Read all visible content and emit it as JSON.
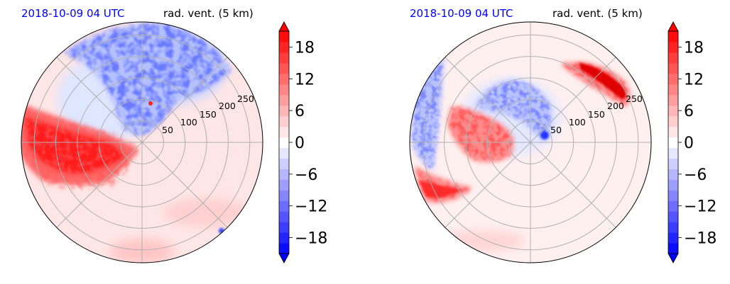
{
  "chart_data": [
    {
      "type": "heatmap",
      "projection": "polar",
      "time_label": "2018-10-09 04 UTC",
      "variable_label": "rad. vent. (5 km)",
      "radial_ticks": [
        "50",
        "100",
        "150",
        "200",
        "250"
      ],
      "radial_tick_values": [
        50,
        100,
        150,
        200,
        250
      ],
      "rmax": 280,
      "grid": true,
      "colorbar": {
        "ticks": [
          "18",
          "12",
          "6",
          "0",
          "−6",
          "−12",
          "−18"
        ],
        "tick_values": [
          18,
          12,
          6,
          0,
          -6,
          -12,
          -18
        ],
        "range": [
          -21,
          21
        ],
        "colors": {
          "negative": "#0000ff",
          "zero": "#ffffff",
          "positive": "#ff0000"
        },
        "extend": "both"
      },
      "features": [
        {
          "sign": "positive",
          "intensity": 0.85,
          "description": "broad band",
          "azimuth_range_deg": [
            168,
            235
          ],
          "radius_range_km": [
            60,
            280
          ]
        },
        {
          "sign": "negative",
          "intensity": 0.55,
          "description": "patchy region",
          "azimuth_range_deg": [
            55,
            125
          ],
          "radius_range_km": [
            20,
            280
          ]
        },
        {
          "sign": "positive",
          "intensity": 0.6,
          "description": "small core",
          "azimuth_range_deg": [
            92,
            98
          ],
          "radius_range_km": [
            80,
            90
          ]
        }
      ]
    },
    {
      "type": "heatmap",
      "projection": "polar",
      "time_label": "2018-10-09 04 UTC",
      "variable_label": "rad. vent. (5 km)",
      "radial_ticks": [
        "50",
        "100",
        "150",
        "200",
        "250"
      ],
      "radial_tick_values": [
        50,
        100,
        150,
        200,
        250
      ],
      "rmax": 280,
      "grid": true,
      "colorbar": {
        "ticks": [
          "18",
          "12",
          "6",
          "0",
          "−6",
          "−12",
          "−18"
        ],
        "tick_values": [
          18,
          12,
          6,
          0,
          -6,
          -12,
          -18
        ],
        "range": [
          -21,
          21
        ],
        "colors": {
          "negative": "#0000ff",
          "zero": "#ffffff",
          "positive": "#ff0000"
        },
        "extend": "both"
      },
      "features": [
        {
          "sign": "positive",
          "intensity": 0.9,
          "description": "northeast band",
          "azimuth_range_deg": [
            25,
            55
          ],
          "radius_range_km": [
            180,
            280
          ]
        },
        {
          "sign": "negative",
          "intensity": 0.6,
          "description": "inner ring",
          "azimuth_range_deg": [
            60,
            180
          ],
          "radius_range_km": [
            20,
            110
          ]
        },
        {
          "sign": "positive",
          "intensity": 0.75,
          "description": "southwest spiral band",
          "azimuth_range_deg": [
            150,
            220
          ],
          "radius_range_km": [
            60,
            240
          ]
        },
        {
          "sign": "mixed",
          "intensity": 0.5,
          "description": "western edge streaks",
          "azimuth_range_deg": [
            140,
            215
          ],
          "radius_range_km": [
            220,
            280
          ]
        }
      ]
    }
  ]
}
